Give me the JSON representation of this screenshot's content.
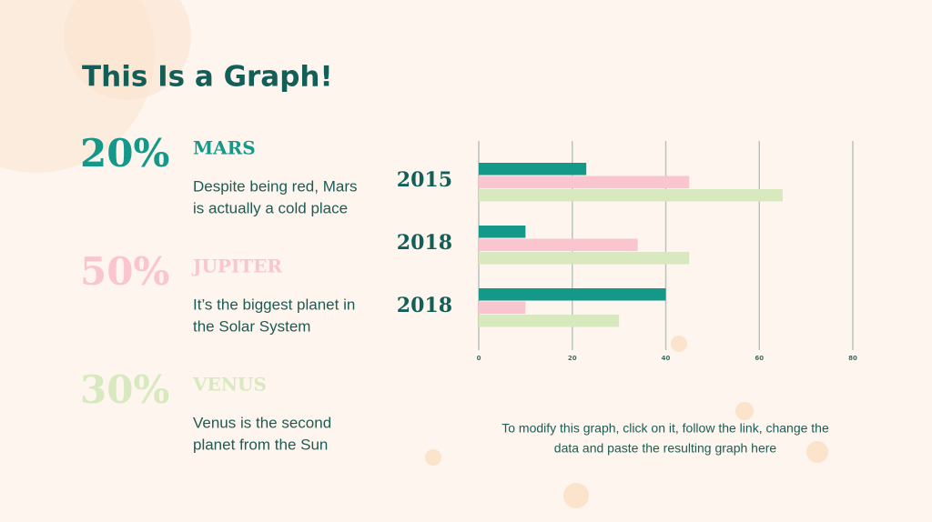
{
  "title": "This Is a Graph!",
  "stats": [
    {
      "percent": "20%",
      "name": "MARS",
      "text": [
        "Despite being red, Mars",
        "is actually a cold place"
      ]
    },
    {
      "percent": "50%",
      "name": "JUPITER",
      "text": [
        "It’s the biggest planet in",
        "the Solar System"
      ]
    },
    {
      "percent": "30%",
      "name": "VENUS",
      "text": [
        "Venus is the second",
        "planet from the Sun"
      ]
    }
  ],
  "note": [
    "To modify this graph, click on it, follow the link, change the",
    "data and paste the resulting graph here"
  ],
  "chart_data": {
    "type": "hbar",
    "categories": [
      "2015",
      "2018",
      "2018"
    ],
    "series": [
      {
        "color": "#13988a",
        "values": [
          23,
          10,
          40
        ]
      },
      {
        "color": "#f9c6cf",
        "values": [
          45,
          34,
          10
        ]
      },
      {
        "color": "#d8e9bf",
        "values": [
          65,
          45,
          30
        ]
      }
    ],
    "xlim": [
      0,
      80
    ],
    "xticks": [
      0,
      20,
      40,
      60,
      80
    ],
    "grid": true
  }
}
